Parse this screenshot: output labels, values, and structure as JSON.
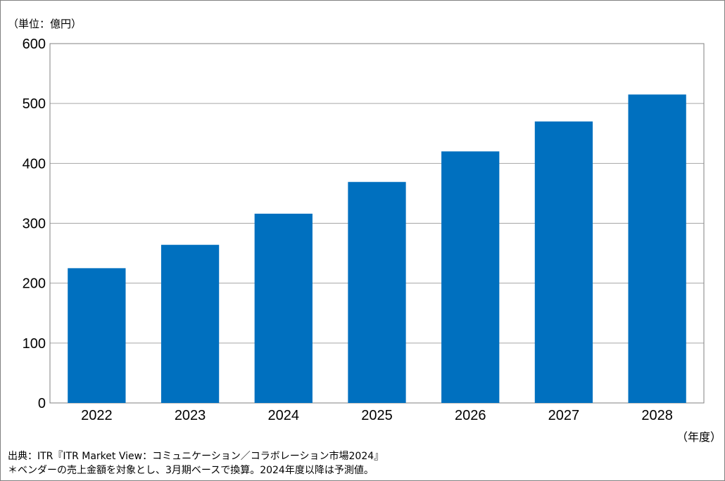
{
  "chart_data": {
    "type": "bar",
    "unit_label": "（単位：億円）",
    "x_unit_label": "（年度）",
    "categories": [
      "2022",
      "2023",
      "2024",
      "2025",
      "2026",
      "2027",
      "2028"
    ],
    "values": [
      225,
      264,
      316,
      369,
      420,
      470,
      515
    ],
    "ylim": [
      0,
      600
    ],
    "yticks": [
      0,
      100,
      200,
      300,
      400,
      500,
      600
    ],
    "grid": true,
    "bar_color": "#0070BF",
    "grid_color": "#A6A6A6"
  },
  "footnotes": {
    "source": "出典：ITR『ITR Market View：コミュニケーション／コラボレーション市場2024』",
    "note": "＊ベンダーの売上金額を対象とし、3月期ベースで換算。2024年度以降は予測値。"
  }
}
